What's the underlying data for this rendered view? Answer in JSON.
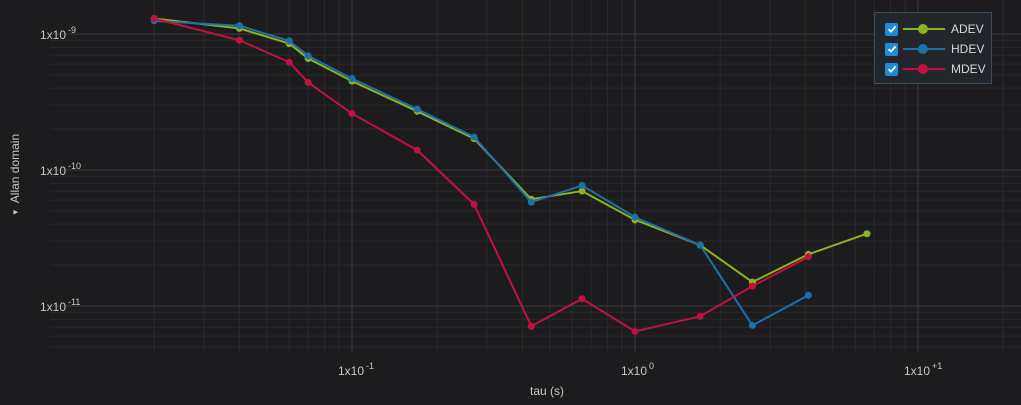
{
  "chart_data": {
    "type": "line",
    "xlabel": "tau (s)",
    "ylabel": "Allan domain",
    "x_scale": "log",
    "y_scale": "log",
    "xlim": [
      0.009,
      30
    ],
    "ylim": [
      5.5e-12,
      1.3e-09
    ],
    "x_ticks": [
      {
        "value": 0.1,
        "base": "1x10",
        "exp": "-1"
      },
      {
        "value": 1,
        "base": "1x10",
        "exp": "0"
      },
      {
        "value": 10,
        "base": "1x10",
        "exp": "+1"
      }
    ],
    "y_ticks": [
      {
        "value": 1e-09,
        "base": "1x10",
        "exp": "-9"
      },
      {
        "value": 1e-10,
        "base": "1x10",
        "exp": "-10"
      },
      {
        "value": 1e-11,
        "base": "1x10",
        "exp": "-11"
      }
    ],
    "grid": true,
    "legend_position": "top-right",
    "series": [
      {
        "name": "ADEV",
        "color": "#8db31e",
        "x": [
          0.02,
          0.04,
          0.06,
          0.07,
          0.1,
          0.17,
          0.27,
          0.43,
          0.65,
          1.0,
          1.7,
          2.6,
          4.1,
          6.6
        ],
        "y": [
          1.3e-09,
          1.1e-09,
          8.5e-10,
          6.6e-10,
          4.5e-10,
          2.7e-10,
          1.7e-10,
          6.1e-11,
          7e-11,
          4.3e-11,
          2.8e-11,
          1.5e-11,
          2.4e-11,
          3.4e-11
        ]
      },
      {
        "name": "HDEV",
        "color": "#1f6fa8",
        "x": [
          0.02,
          0.04,
          0.06,
          0.07,
          0.1,
          0.17,
          0.27,
          0.43,
          0.65,
          1.0,
          1.7,
          2.6,
          4.1
        ],
        "y": [
          1.25e-09,
          1.15e-09,
          8.9e-10,
          6.9e-10,
          4.7e-10,
          2.8e-10,
          1.75e-10,
          5.8e-11,
          7.7e-11,
          4.5e-11,
          2.8e-11,
          7.2e-12,
          1.2e-11
        ]
      },
      {
        "name": "MDEV",
        "color": "#c0123f",
        "x": [
          0.02,
          0.04,
          0.06,
          0.07,
          0.1,
          0.17,
          0.27,
          0.43,
          0.65,
          1.0,
          1.7,
          2.6,
          4.1
        ],
        "y": [
          1.3e-09,
          9e-10,
          6.2e-10,
          4.4e-10,
          2.6e-10,
          1.4e-10,
          5.6e-11,
          7.1e-12,
          1.13e-11,
          6.5e-12,
          8.4e-12,
          1.4e-11,
          2.3e-11
        ]
      }
    ]
  },
  "icons": {
    "checkbox": "check-icon",
    "axis_toggle": "caret-icon"
  },
  "colors": {
    "background": "#1c1c1e",
    "grid_major": "#3a3a3d",
    "grid_minor": "#2a2a2d",
    "checkbox": "#1e8bd6"
  }
}
